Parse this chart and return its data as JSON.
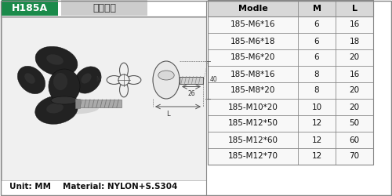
{
  "title_code": "H185A",
  "title_chinese": "星型螺母",
  "title_bg": "#1a8a4a",
  "title_text_color": "#ffffff",
  "subtitle_bg": "#cccccc",
  "subtitle_text_color": "#333333",
  "table_header": [
    "Modle",
    "M",
    "L"
  ],
  "table_data": [
    [
      "185-M6*16",
      "6",
      "16"
    ],
    [
      "185-M6*18",
      "6",
      "18"
    ],
    [
      "185-M6*20",
      "6",
      "20"
    ],
    [
      "185-M8*16",
      "8",
      "16"
    ],
    [
      "185-M8*20",
      "8",
      "20"
    ],
    [
      "185-M10*20",
      "10",
      "20"
    ],
    [
      "185-M12*50",
      "12",
      "50"
    ],
    [
      "185-M12*60",
      "12",
      "60"
    ],
    [
      "185-M12*70",
      "12",
      "70"
    ]
  ],
  "footer_unit": "Unit: MM",
  "footer_material": "Material: NYLON+S.S304",
  "bg_color": "#e8e8e8",
  "table_bg": "#f0f0f0",
  "table_border_color": "#888888",
  "header_row_color": "#d8d8d8",
  "alt_row_color": "#f8f8f8",
  "dim_color": "#555555",
  "knob_dark": "#222222",
  "knob_mid": "#444444",
  "knob_light": "#666666",
  "bolt_color": "#aaaaaa",
  "bolt_dark": "#777777"
}
